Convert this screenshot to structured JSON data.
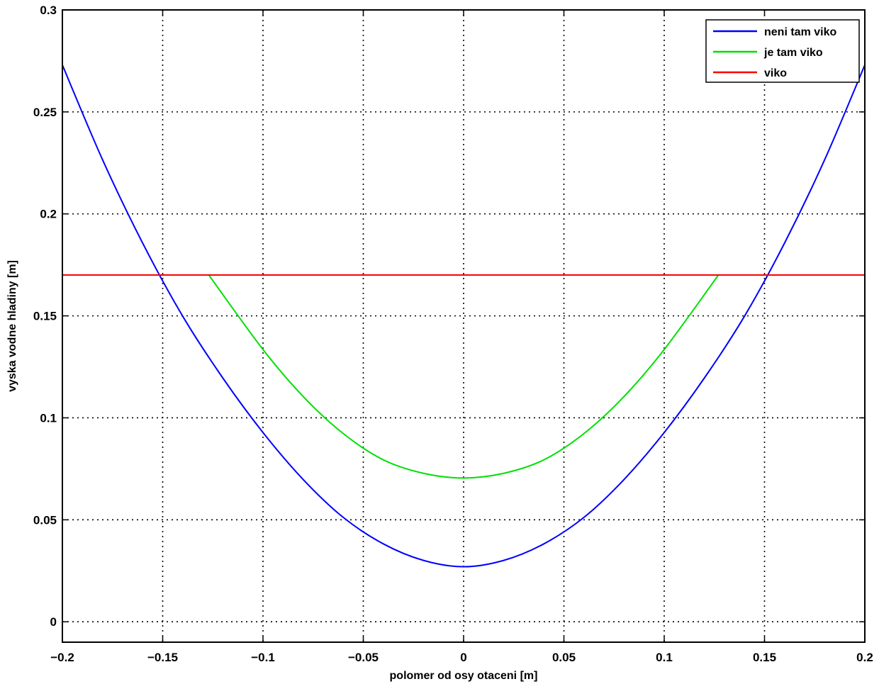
{
  "chart_data": {
    "type": "line",
    "title": "",
    "xlabel": "polomer od osy otaceni [m]",
    "ylabel": "vyska vodne hladiny [m]",
    "xlim": [
      -0.2,
      0.2
    ],
    "ylim": [
      -0.01,
      0.3
    ],
    "xticks": [
      -0.2,
      -0.15,
      -0.1,
      -0.05,
      0,
      0.05,
      0.1,
      0.15,
      0.2
    ],
    "xtick_labels": [
      "−0.2",
      "−0.15",
      "−0.1",
      "−0.05",
      "0",
      "0.05",
      "0.1",
      "0.15",
      "0.2"
    ],
    "yticks": [
      0,
      0.05,
      0.1,
      0.15,
      0.2,
      0.25,
      0.3
    ],
    "ytick_labels": [
      "0",
      "0.05",
      "0.1",
      "0.15",
      "0.2",
      "0.25",
      "0.3"
    ],
    "grid": true,
    "legend_position": "top-right",
    "series": [
      {
        "name": "neni tam viko",
        "color": "#0000ff",
        "x": [
          -0.2,
          -0.18,
          -0.16,
          -0.14,
          -0.12,
          -0.1,
          -0.08,
          -0.06,
          -0.04,
          -0.02,
          0,
          0.02,
          0.04,
          0.06,
          0.08,
          0.1,
          0.12,
          0.14,
          0.16,
          0.18,
          0.2
        ],
        "y": [
          0.273,
          0.2266,
          0.1857,
          0.1498,
          0.1195,
          0.0928,
          0.0698,
          0.0512,
          0.0382,
          0.0301,
          0.027,
          0.0301,
          0.0382,
          0.0512,
          0.0698,
          0.0928,
          0.1195,
          0.1498,
          0.1857,
          0.2266,
          0.273
        ]
      },
      {
        "name": "je tam viko",
        "color": "#00e000",
        "x": [
          -0.127,
          -0.1,
          -0.08,
          -0.06,
          -0.04,
          -0.02,
          0,
          0.02,
          0.04,
          0.06,
          0.08,
          0.1,
          0.127
        ],
        "y": [
          0.17,
          0.1335,
          0.1105,
          0.0923,
          0.0794,
          0.0728,
          0.0705,
          0.0728,
          0.0794,
          0.0923,
          0.1105,
          0.1335,
          0.17
        ]
      },
      {
        "name": "viko",
        "color": "#ff0000",
        "x": [
          -0.2,
          0.2
        ],
        "y": [
          0.17,
          0.17
        ]
      }
    ]
  }
}
